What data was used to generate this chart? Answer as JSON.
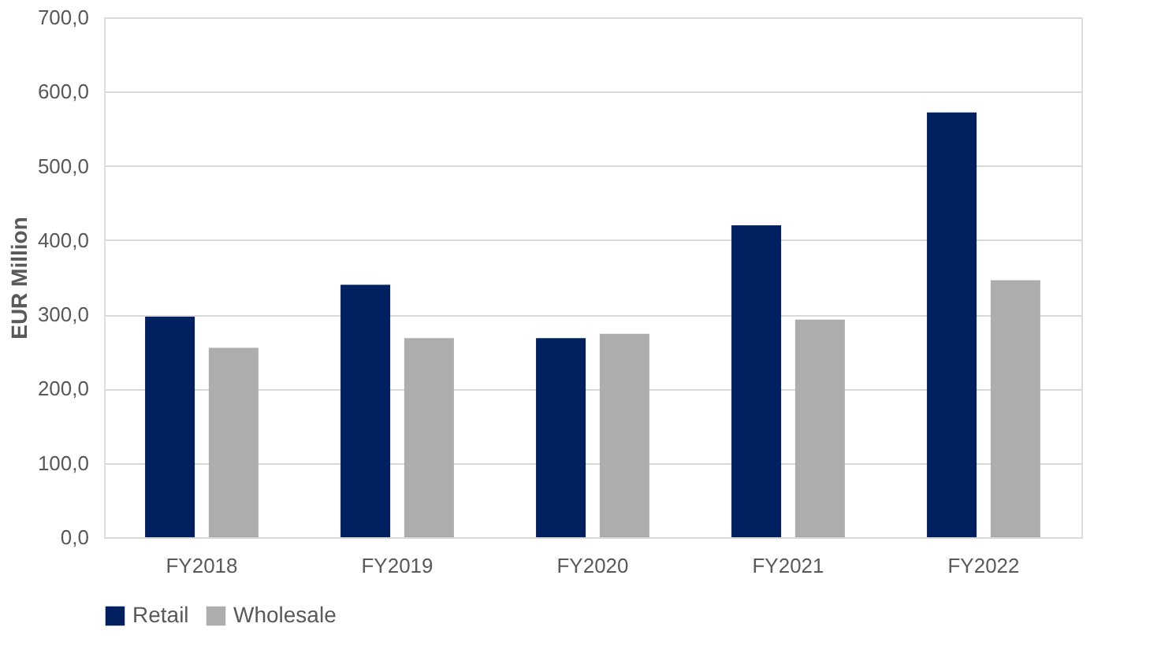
{
  "chart_data": {
    "type": "bar",
    "ylabel": "EUR Million",
    "categories": [
      "FY2018",
      "FY2019",
      "FY2020",
      "FY2021",
      "FY2022"
    ],
    "series": [
      {
        "name": "Retail",
        "color": "#002060",
        "values": [
          297,
          340,
          268,
          420,
          572
        ]
      },
      {
        "name": "Wholesale",
        "color": "#aeadad",
        "values": [
          255,
          268,
          274,
          293,
          346
        ]
      }
    ],
    "ylim": [
      0,
      700
    ],
    "yticks": [
      {
        "value": 0,
        "label": "0,0"
      },
      {
        "value": 100,
        "label": "100,0"
      },
      {
        "value": 200,
        "label": "200,0"
      },
      {
        "value": 300,
        "label": "300,0"
      },
      {
        "value": 400,
        "label": "400,0"
      },
      {
        "value": 500,
        "label": "500,0"
      },
      {
        "value": 600,
        "label": "600,0"
      },
      {
        "value": 700,
        "label": "700,0"
      }
    ],
    "grid": "y",
    "legend": "bottom"
  }
}
